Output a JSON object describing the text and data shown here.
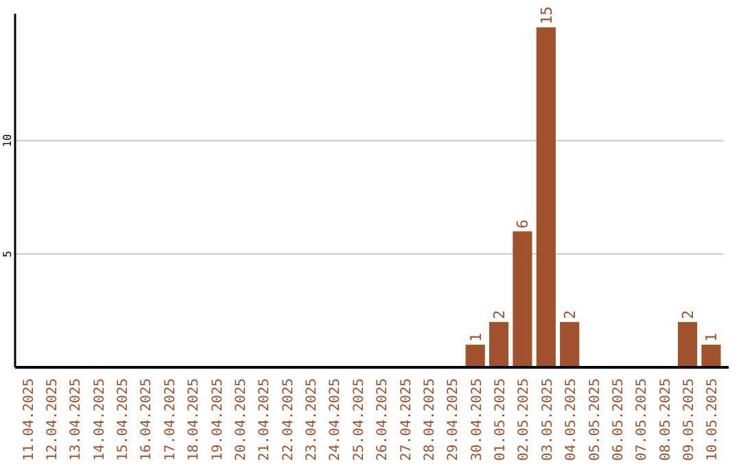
{
  "chart_data": {
    "type": "bar",
    "categories": [
      "11.04.2025",
      "12.04.2025",
      "13.04.2025",
      "14.04.2025",
      "15.04.2025",
      "16.04.2025",
      "17.04.2025",
      "18.04.2025",
      "19.04.2025",
      "20.04.2025",
      "21.04.2025",
      "22.04.2025",
      "23.04.2025",
      "24.04.2025",
      "25.04.2025",
      "26.04.2025",
      "27.04.2025",
      "28.04.2025",
      "29.04.2025",
      "30.04.2025",
      "01.05.2025",
      "02.05.2025",
      "03.05.2025",
      "04.05.2025",
      "05.05.2025",
      "06.05.2025",
      "07.05.2025",
      "08.05.2025",
      "09.05.2025",
      "10.05.2025"
    ],
    "values": [
      0,
      0,
      0,
      0,
      0,
      0,
      0,
      0,
      0,
      0,
      0,
      0,
      0,
      0,
      0,
      0,
      0,
      0,
      0,
      1,
      2,
      6,
      15,
      2,
      0,
      0,
      0,
      0,
      2,
      1
    ],
    "value_labels": [
      null,
      null,
      null,
      null,
      null,
      null,
      null,
      null,
      null,
      null,
      null,
      null,
      null,
      null,
      null,
      null,
      null,
      null,
      null,
      "1",
      "2",
      "6",
      "15",
      "2",
      null,
      null,
      null,
      null,
      "2",
      "1"
    ],
    "color": "#a0522d",
    "ylim": [
      0,
      15.6
    ],
    "yticks": [
      5,
      10
    ],
    "grid": "y"
  }
}
